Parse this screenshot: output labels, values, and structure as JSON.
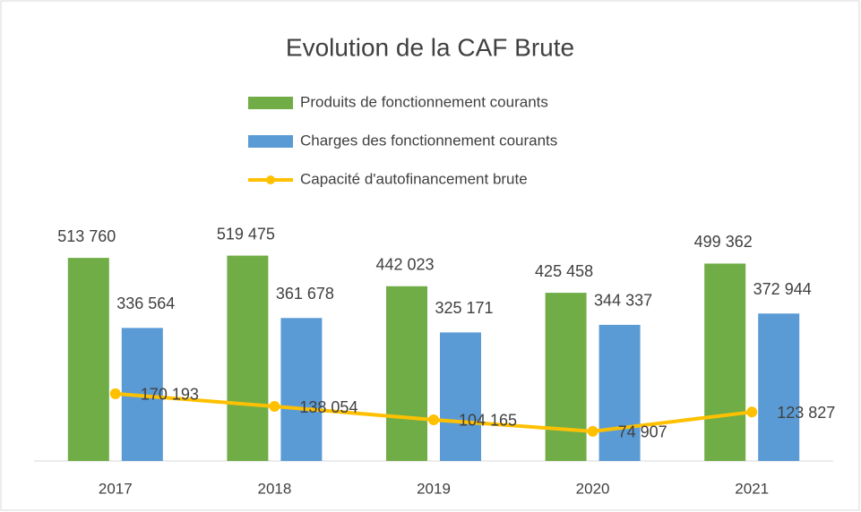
{
  "chart_data": {
    "type": "bar",
    "title": "Evolution de la CAF Brute",
    "categories": [
      "2017",
      "2018",
      "2019",
      "2020",
      "2021"
    ],
    "series": [
      {
        "name": "Produits de fonctionnement courants",
        "type": "bar",
        "color": "#70ad47",
        "values": [
          513760,
          519475,
          442023,
          425458,
          499362
        ],
        "value_labels": [
          "513 760",
          "519 475",
          "442 023",
          "425 458",
          "499 362"
        ]
      },
      {
        "name": "Charges des fonctionnement courants",
        "type": "bar",
        "color": "#5b9bd5",
        "values": [
          336564,
          361678,
          325171,
          344337,
          372944
        ],
        "value_labels": [
          "336 564",
          "361 678",
          "325 171",
          "344 337",
          "372 944"
        ]
      },
      {
        "name": "Capacité d'autofinancement brute",
        "type": "line",
        "color": "#ffc000",
        "values": [
          170193,
          138054,
          104165,
          74907,
          123827
        ],
        "value_labels": [
          "170 193",
          "138 054",
          "104 165",
          "74 907",
          "123 827"
        ]
      }
    ],
    "ylim": [
      0,
      600000
    ],
    "legend": "top"
  }
}
